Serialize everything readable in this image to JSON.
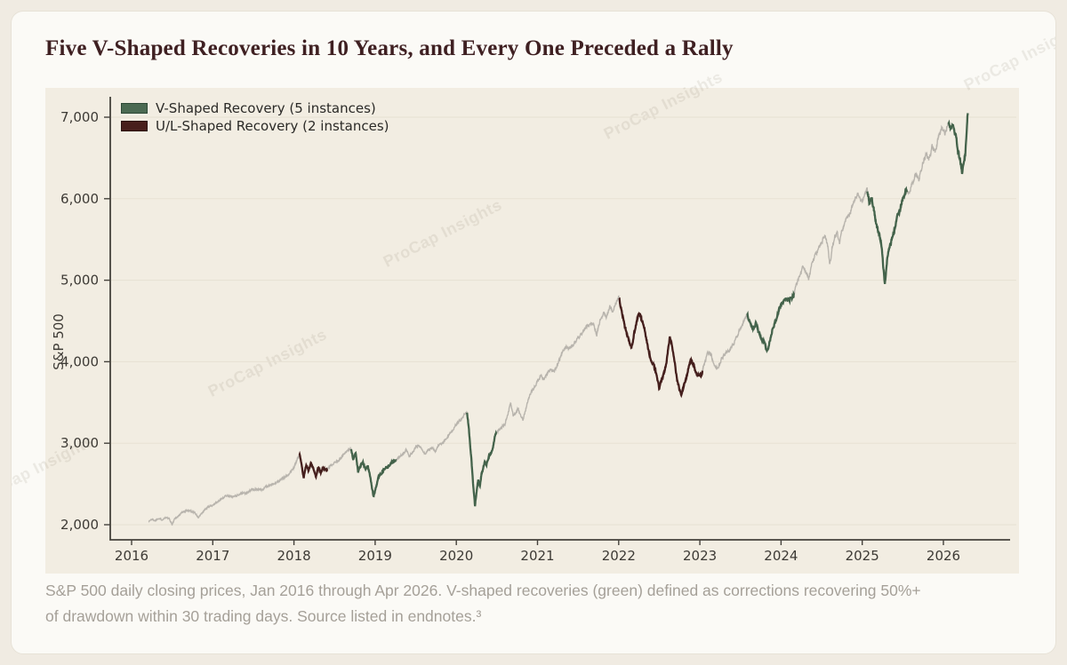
{
  "page": {
    "title": "Five V-Shaped Recoveries in 10 Years, and Every One Preceded a Rally",
    "caption_lines": [
      "S&P 500 daily closing prices, Jan 2016 through Apr 2026. V-shaped recoveries (green) defined as corrections recovering 50%+",
      "of drawdown within 30 trading days. Source listed in endnotes.³"
    ],
    "watermark": "ProCap Insights"
  },
  "chart_data": {
    "type": "line",
    "title": "",
    "xlabel": "",
    "ylabel": "S&P 500",
    "x_ticks": [
      2016,
      2017,
      2018,
      2019,
      2020,
      2021,
      2022,
      2023,
      2024,
      2025,
      2026
    ],
    "x_tick_labels": [
      "2016",
      "2017",
      "2018",
      "2019",
      "2020",
      "2021",
      "2022",
      "2023",
      "2024",
      "2025",
      "2026"
    ],
    "y_ticks": [
      2000,
      3000,
      4000,
      5000,
      6000,
      7000
    ],
    "y_tick_labels": [
      "2,000",
      "3,000",
      "4,000",
      "5,000",
      "6,000",
      "7,000"
    ],
    "xlim": [
      2015.74,
      2026.82
    ],
    "ylim": [
      1815,
      7250
    ],
    "grid": "horizontal",
    "legend_position": "upper-left",
    "legend": [
      {
        "label": "V-Shaped Recovery (5 instances)",
        "color": "#4b6a52",
        "border": "#2d4836"
      },
      {
        "label": "U/L-Shaped Recovery (2 instances)",
        "color": "#481f1c",
        "border": "#2a1210"
      }
    ],
    "colors": {
      "axis": "#45423c",
      "grid": "#e7e1d3",
      "tick_text": "#3d3a35",
      "normal": "#b8b4ad",
      "v": "#44634b",
      "ul": "#451f1d",
      "panel_bg": "#f2ede2"
    },
    "segments": [
      {
        "type": "ul",
        "start": 2018.065,
        "end": 2018.41
      },
      {
        "type": "v",
        "start": 2018.7,
        "end": 2019.26
      },
      {
        "type": "v",
        "start": 2020.13,
        "end": 2020.49
      },
      {
        "type": "ul",
        "start": 2022.0,
        "end": 2023.03
      },
      {
        "type": "v",
        "start": 2023.58,
        "end": 2024.16
      },
      {
        "type": "v",
        "start": 2025.06,
        "end": 2025.55
      },
      {
        "type": "v",
        "start": 2026.06,
        "end": 2026.31
      }
    ],
    "series": [
      {
        "name": "S&P 500",
        "points": [
          [
            2016.21,
            2040
          ],
          [
            2016.25,
            2068
          ],
          [
            2016.29,
            2050
          ],
          [
            2016.33,
            2082
          ],
          [
            2016.37,
            2062
          ],
          [
            2016.42,
            2090
          ],
          [
            2016.46,
            2075
          ],
          [
            2016.5,
            2002
          ],
          [
            2016.53,
            2075
          ],
          [
            2016.58,
            2108
          ],
          [
            2016.63,
            2160
          ],
          [
            2016.68,
            2175
          ],
          [
            2016.73,
            2168
          ],
          [
            2016.78,
            2150
          ],
          [
            2016.82,
            2085
          ],
          [
            2016.86,
            2130
          ],
          [
            2016.9,
            2180
          ],
          [
            2016.95,
            2220
          ],
          [
            2017.0,
            2245
          ],
          [
            2017.06,
            2280
          ],
          [
            2017.12,
            2330
          ],
          [
            2017.18,
            2360
          ],
          [
            2017.24,
            2345
          ],
          [
            2017.3,
            2360
          ],
          [
            2017.36,
            2390
          ],
          [
            2017.42,
            2385
          ],
          [
            2017.48,
            2430
          ],
          [
            2017.54,
            2440
          ],
          [
            2017.6,
            2425
          ],
          [
            2017.66,
            2470
          ],
          [
            2017.72,
            2490
          ],
          [
            2017.78,
            2510
          ],
          [
            2017.84,
            2555
          ],
          [
            2017.9,
            2590
          ],
          [
            2017.96,
            2650
          ],
          [
            2018.0,
            2700
          ],
          [
            2018.04,
            2800
          ],
          [
            2018.07,
            2873
          ],
          [
            2018.1,
            2700
          ],
          [
            2018.12,
            2581
          ],
          [
            2018.15,
            2735
          ],
          [
            2018.18,
            2655
          ],
          [
            2018.21,
            2750
          ],
          [
            2018.24,
            2680
          ],
          [
            2018.27,
            2590
          ],
          [
            2018.3,
            2710
          ],
          [
            2018.33,
            2640
          ],
          [
            2018.36,
            2695
          ],
          [
            2018.4,
            2665
          ],
          [
            2018.44,
            2710
          ],
          [
            2018.48,
            2740
          ],
          [
            2018.52,
            2775
          ],
          [
            2018.56,
            2800
          ],
          [
            2018.6,
            2850
          ],
          [
            2018.65,
            2900
          ],
          [
            2018.7,
            2930
          ],
          [
            2018.73,
            2810
          ],
          [
            2018.76,
            2880
          ],
          [
            2018.79,
            2650
          ],
          [
            2018.82,
            2720
          ],
          [
            2018.85,
            2760
          ],
          [
            2018.88,
            2680
          ],
          [
            2018.91,
            2730
          ],
          [
            2018.94,
            2580
          ],
          [
            2018.98,
            2351
          ],
          [
            2019.01,
            2450
          ],
          [
            2019.04,
            2580
          ],
          [
            2019.08,
            2640
          ],
          [
            2019.12,
            2700
          ],
          [
            2019.16,
            2720
          ],
          [
            2019.2,
            2760
          ],
          [
            2019.25,
            2790
          ],
          [
            2019.3,
            2830
          ],
          [
            2019.34,
            2865
          ],
          [
            2019.38,
            2920
          ],
          [
            2019.42,
            2840
          ],
          [
            2019.46,
            2890
          ],
          [
            2019.5,
            2950
          ],
          [
            2019.54,
            2980
          ],
          [
            2019.58,
            2920
          ],
          [
            2019.62,
            2855
          ],
          [
            2019.66,
            2920
          ],
          [
            2019.7,
            2950
          ],
          [
            2019.74,
            2900
          ],
          [
            2019.78,
            2970
          ],
          [
            2019.82,
            2990
          ],
          [
            2019.86,
            3030
          ],
          [
            2019.9,
            3090
          ],
          [
            2019.95,
            3150
          ],
          [
            2020.0,
            3235
          ],
          [
            2020.04,
            3280
          ],
          [
            2020.08,
            3330
          ],
          [
            2020.11,
            3360
          ],
          [
            2020.13,
            3386
          ],
          [
            2020.15,
            3220
          ],
          [
            2020.17,
            2980
          ],
          [
            2020.19,
            2750
          ],
          [
            2020.21,
            2450
          ],
          [
            2020.23,
            2237
          ],
          [
            2020.25,
            2410
          ],
          [
            2020.27,
            2550
          ],
          [
            2020.29,
            2480
          ],
          [
            2020.31,
            2630
          ],
          [
            2020.33,
            2680
          ],
          [
            2020.35,
            2790
          ],
          [
            2020.37,
            2740
          ],
          [
            2020.4,
            2840
          ],
          [
            2020.43,
            2880
          ],
          [
            2020.45,
            2950
          ],
          [
            2020.48,
            3110
          ],
          [
            2020.52,
            3160
          ],
          [
            2020.56,
            3200
          ],
          [
            2020.6,
            3240
          ],
          [
            2020.64,
            3380
          ],
          [
            2020.67,
            3500
          ],
          [
            2020.7,
            3340
          ],
          [
            2020.73,
            3380
          ],
          [
            2020.76,
            3420
          ],
          [
            2020.79,
            3350
          ],
          [
            2020.82,
            3290
          ],
          [
            2020.85,
            3400
          ],
          [
            2020.88,
            3520
          ],
          [
            2020.92,
            3620
          ],
          [
            2020.96,
            3690
          ],
          [
            2021.0,
            3760
          ],
          [
            2021.04,
            3820
          ],
          [
            2021.08,
            3790
          ],
          [
            2021.12,
            3850
          ],
          [
            2021.16,
            3900
          ],
          [
            2021.2,
            3880
          ],
          [
            2021.25,
            3970
          ],
          [
            2021.3,
            4100
          ],
          [
            2021.35,
            4180
          ],
          [
            2021.4,
            4160
          ],
          [
            2021.45,
            4230
          ],
          [
            2021.5,
            4300
          ],
          [
            2021.55,
            4360
          ],
          [
            2021.6,
            4430
          ],
          [
            2021.65,
            4480
          ],
          [
            2021.7,
            4440
          ],
          [
            2021.73,
            4330
          ],
          [
            2021.77,
            4500
          ],
          [
            2021.81,
            4600
          ],
          [
            2021.85,
            4550
          ],
          [
            2021.89,
            4680
          ],
          [
            2021.93,
            4620
          ],
          [
            2021.97,
            4720
          ],
          [
            2022.0,
            4797
          ],
          [
            2022.04,
            4620
          ],
          [
            2022.07,
            4450
          ],
          [
            2022.1,
            4350
          ],
          [
            2022.13,
            4250
          ],
          [
            2022.16,
            4180
          ],
          [
            2022.19,
            4350
          ],
          [
            2022.22,
            4480
          ],
          [
            2022.25,
            4600
          ],
          [
            2022.28,
            4520
          ],
          [
            2022.31,
            4450
          ],
          [
            2022.34,
            4280
          ],
          [
            2022.37,
            4120
          ],
          [
            2022.4,
            4020
          ],
          [
            2022.43,
            3960
          ],
          [
            2022.46,
            3870
          ],
          [
            2022.5,
            3667
          ],
          [
            2022.53,
            3780
          ],
          [
            2022.56,
            3860
          ],
          [
            2022.59,
            4010
          ],
          [
            2022.63,
            4300
          ],
          [
            2022.66,
            4180
          ],
          [
            2022.69,
            3990
          ],
          [
            2022.72,
            3770
          ],
          [
            2022.75,
            3650
          ],
          [
            2022.77,
            3585
          ],
          [
            2022.8,
            3700
          ],
          [
            2022.83,
            3780
          ],
          [
            2022.86,
            3940
          ],
          [
            2022.89,
            4020
          ],
          [
            2022.92,
            3970
          ],
          [
            2022.95,
            3870
          ],
          [
            2022.98,
            3820
          ],
          [
            2023.02,
            3850
          ],
          [
            2023.06,
            3990
          ],
          [
            2023.1,
            4120
          ],
          [
            2023.14,
            4080
          ],
          [
            2023.18,
            3940
          ],
          [
            2023.22,
            3920
          ],
          [
            2023.26,
            4020
          ],
          [
            2023.3,
            4090
          ],
          [
            2023.34,
            4120
          ],
          [
            2023.38,
            4160
          ],
          [
            2023.42,
            4230
          ],
          [
            2023.46,
            4320
          ],
          [
            2023.5,
            4420
          ],
          [
            2023.54,
            4500
          ],
          [
            2023.58,
            4594
          ],
          [
            2023.62,
            4470
          ],
          [
            2023.66,
            4400
          ],
          [
            2023.69,
            4490
          ],
          [
            2023.72,
            4380
          ],
          [
            2023.75,
            4300
          ],
          [
            2023.79,
            4240
          ],
          [
            2023.83,
            4126
          ],
          [
            2023.86,
            4240
          ],
          [
            2023.89,
            4380
          ],
          [
            2023.92,
            4480
          ],
          [
            2023.95,
            4550
          ],
          [
            2023.98,
            4640
          ],
          [
            2024.02,
            4740
          ],
          [
            2024.06,
            4770
          ],
          [
            2024.1,
            4760
          ],
          [
            2024.15,
            4805
          ],
          [
            2024.19,
            4950
          ],
          [
            2024.23,
            5060
          ],
          [
            2024.27,
            5180
          ],
          [
            2024.31,
            5100
          ],
          [
            2024.34,
            5020
          ],
          [
            2024.38,
            5200
          ],
          [
            2024.42,
            5300
          ],
          [
            2024.46,
            5380
          ],
          [
            2024.5,
            5460
          ],
          [
            2024.54,
            5560
          ],
          [
            2024.58,
            5380
          ],
          [
            2024.6,
            5190
          ],
          [
            2024.63,
            5400
          ],
          [
            2024.66,
            5530
          ],
          [
            2024.69,
            5580
          ],
          [
            2024.72,
            5440
          ],
          [
            2024.75,
            5620
          ],
          [
            2024.79,
            5720
          ],
          [
            2024.83,
            5800
          ],
          [
            2024.87,
            5880
          ],
          [
            2024.91,
            5990
          ],
          [
            2024.95,
            6080
          ],
          [
            2024.98,
            5960
          ],
          [
            2025.02,
            6020
          ],
          [
            2025.06,
            6118
          ],
          [
            2025.09,
            5950
          ],
          [
            2025.12,
            6010
          ],
          [
            2025.15,
            5820
          ],
          [
            2025.18,
            5640
          ],
          [
            2025.21,
            5580
          ],
          [
            2025.24,
            5400
          ],
          [
            2025.26,
            5150
          ],
          [
            2025.28,
            4963
          ],
          [
            2025.31,
            5280
          ],
          [
            2025.34,
            5420
          ],
          [
            2025.37,
            5520
          ],
          [
            2025.4,
            5640
          ],
          [
            2025.43,
            5760
          ],
          [
            2025.46,
            5850
          ],
          [
            2025.49,
            5960
          ],
          [
            2025.52,
            6050
          ],
          [
            2025.54,
            6120
          ],
          [
            2025.58,
            6060
          ],
          [
            2025.62,
            6210
          ],
          [
            2025.66,
            6310
          ],
          [
            2025.7,
            6230
          ],
          [
            2025.74,
            6420
          ],
          [
            2025.78,
            6540
          ],
          [
            2025.82,
            6480
          ],
          [
            2025.86,
            6630
          ],
          [
            2025.9,
            6580
          ],
          [
            2025.94,
            6760
          ],
          [
            2025.98,
            6860
          ],
          [
            2026.02,
            6800
          ],
          [
            2026.06,
            6950
          ],
          [
            2026.09,
            6870
          ],
          [
            2026.12,
            6910
          ],
          [
            2026.15,
            6790
          ],
          [
            2026.18,
            6600
          ],
          [
            2026.21,
            6450
          ],
          [
            2026.23,
            6330
          ],
          [
            2026.25,
            6400
          ],
          [
            2026.27,
            6550
          ],
          [
            2026.29,
            6900
          ],
          [
            2026.3,
            7050
          ]
        ]
      }
    ]
  }
}
